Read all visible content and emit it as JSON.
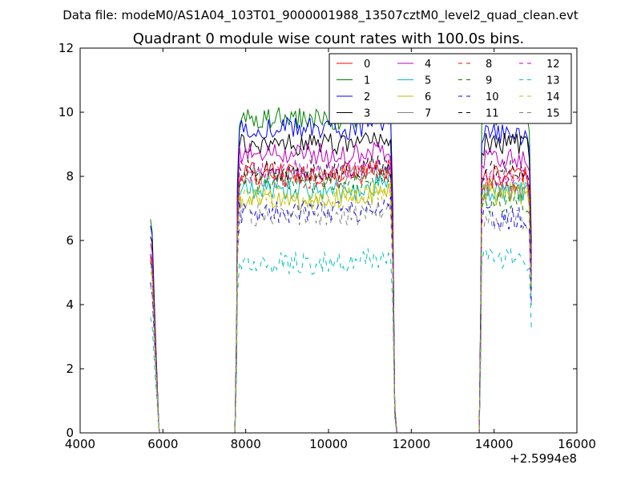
{
  "suptitle": "Data file: modeM0/AS1A04_103T01_9000001988_13507cztM0_level2_quad_clean.evt",
  "chart_data": {
    "type": "line",
    "title": "Quadrant 0 module wise count rates with 100.0s bins.",
    "xlabel": "",
    "ylabel": "",
    "x_offset_label": "+2.5994e8",
    "xlim": [
      4000,
      16000
    ],
    "ylim": [
      0,
      12
    ],
    "x_ticks": [
      4000,
      6000,
      8000,
      10000,
      12000,
      14000,
      16000
    ],
    "x_tick_labels": [
      "4000",
      "6000",
      "8000",
      "10000",
      "12000",
      "14000",
      "16000"
    ],
    "y_ticks": [
      0,
      2,
      4,
      6,
      8,
      10,
      12
    ],
    "y_tick_labels": [
      "0",
      "2",
      "4",
      "6",
      "8",
      "10",
      "12"
    ],
    "grid": false,
    "legend_position": "top-right",
    "legend_columns": 4,
    "segments": [
      {
        "start": 5700,
        "end": 5900
      },
      {
        "start": 7800,
        "end": 11600
      },
      {
        "start": 13700,
        "end": 14900
      }
    ],
    "series": [
      {
        "name": "0",
        "color": "#ff0000",
        "dash": "solid",
        "level": 8.1,
        "seg3_level": 8.0
      },
      {
        "name": "1",
        "color": "#008000",
        "dash": "solid",
        "level": 9.8,
        "seg3_level": 9.9
      },
      {
        "name": "2",
        "color": "#0000ff",
        "dash": "solid",
        "level": 9.5,
        "seg3_level": 9.3
      },
      {
        "name": "3",
        "color": "#000000",
        "dash": "solid",
        "level": 9.0,
        "seg3_level": 9.0
      },
      {
        "name": "4",
        "color": "#bf00bf",
        "dash": "solid",
        "level": 8.7,
        "seg3_level": 8.6
      },
      {
        "name": "5",
        "color": "#00bfbf",
        "dash": "solid",
        "level": 7.6,
        "seg3_level": 7.5
      },
      {
        "name": "6",
        "color": "#bfbf00",
        "dash": "solid",
        "level": 7.3,
        "seg3_level": 7.4
      },
      {
        "name": "7",
        "color": "#808080",
        "dash": "solid",
        "level": 8.0,
        "seg3_level": 7.6
      },
      {
        "name": "8",
        "color": "#ff0000",
        "dash": "dashed",
        "level": 7.9,
        "seg3_level": 7.8
      },
      {
        "name": "9",
        "color": "#008000",
        "dash": "dashed",
        "level": 7.8,
        "seg3_level": 7.2
      },
      {
        "name": "10",
        "color": "#0000ff",
        "dash": "dashed",
        "level": 6.9,
        "seg3_level": 6.7
      },
      {
        "name": "11",
        "color": "#000000",
        "dash": "dashed",
        "level": 8.2,
        "seg3_level": 8.2
      },
      {
        "name": "12",
        "color": "#bf00bf",
        "dash": "dashed",
        "level": 8.2,
        "seg3_level": 8.0
      },
      {
        "name": "13",
        "color": "#00bfbf",
        "dash": "dashed",
        "level": 5.3,
        "seg3_level": 5.4
      },
      {
        "name": "14",
        "color": "#bfbf00",
        "dash": "dashed",
        "level": 7.4,
        "seg3_level": 7.6
      },
      {
        "name": "15",
        "color": "#808080",
        "dash": "dashed",
        "level": 6.8,
        "seg3_level": 6.6
      }
    ]
  }
}
